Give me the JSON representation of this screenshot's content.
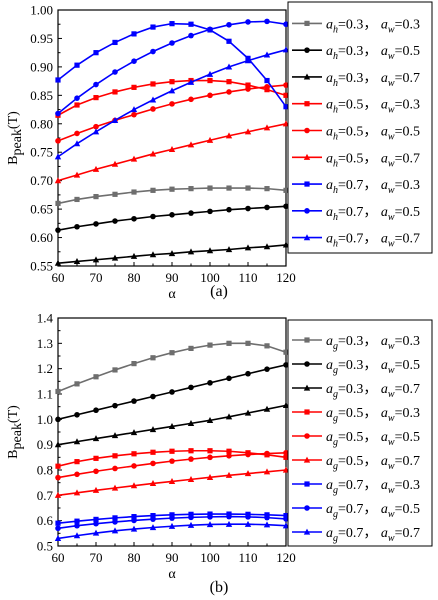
{
  "chart_data": [
    {
      "type": "line",
      "caption": "(a)",
      "xlabel": "α",
      "ylabel": "B",
      "ylabel_sub": "peak",
      "ylabel_suffix": "(T)",
      "xlim": [
        60,
        120
      ],
      "ylim": [
        0.55,
        1.0
      ],
      "xticks": [
        "60",
        "70",
        "80",
        "90",
        "100",
        "110",
        "120"
      ],
      "yticks": [
        "0.55",
        "0.60",
        "0.65",
        "0.70",
        "0.75",
        "0.80",
        "0.85",
        "0.90",
        "0.95",
        "1.00"
      ],
      "x": [
        60,
        65,
        70,
        75,
        80,
        85,
        90,
        95,
        100,
        105,
        110,
        115,
        120
      ],
      "series": [
        {
          "name": "a_h=0.3， a_w=0.3",
          "sym1": "h",
          "v1": "=0.3",
          "sep": "，",
          "sym2": "w",
          "v2": "=0.3",
          "color": "#6e6e6e",
          "marker": "square",
          "values": [
            0.66,
            0.667,
            0.672,
            0.676,
            0.68,
            0.683,
            0.685,
            0.686,
            0.687,
            0.687,
            0.687,
            0.686,
            0.683
          ]
        },
        {
          "name": "a_h=0.3， a_w=0.5",
          "sym1": "h",
          "v1": "=0.3",
          "sep": "，",
          "sym2": "w",
          "v2": "=0.5",
          "color": "#000000",
          "marker": "circle",
          "values": [
            0.613,
            0.619,
            0.624,
            0.629,
            0.633,
            0.637,
            0.64,
            0.643,
            0.646,
            0.649,
            0.651,
            0.653,
            0.655
          ]
        },
        {
          "name": "a_h=0.3， a_w=0.7",
          "sym1": "h",
          "v1": "=0.3",
          "sep": "，",
          "sym2": "w",
          "v2": "=0.7",
          "color": "#000000",
          "marker": "triangle",
          "values": [
            0.555,
            0.558,
            0.561,
            0.564,
            0.567,
            0.57,
            0.572,
            0.575,
            0.577,
            0.579,
            0.582,
            0.584,
            0.587
          ]
        },
        {
          "name": "a_h=0.5， a_w=0.3",
          "sym1": "h",
          "v1": "=0.5",
          "sep": "，",
          "sym2": "w",
          "v2": "=0.3",
          "color": "#ff0000",
          "marker": "square",
          "values": [
            0.815,
            0.833,
            0.846,
            0.856,
            0.864,
            0.87,
            0.874,
            0.876,
            0.876,
            0.874,
            0.868,
            0.86,
            0.85
          ]
        },
        {
          "name": "a_h=0.5， a_w=0.5",
          "sym1": "h",
          "v1": "=0.5",
          "sep": "，",
          "sym2": "w",
          "v2": "=0.5",
          "color": "#ff0000",
          "marker": "circle",
          "values": [
            0.77,
            0.783,
            0.795,
            0.806,
            0.816,
            0.826,
            0.835,
            0.843,
            0.85,
            0.856,
            0.861,
            0.865,
            0.868
          ]
        },
        {
          "name": "a_h=0.5， a_w=0.7",
          "sym1": "h",
          "v1": "=0.5",
          "sep": "，",
          "sym2": "w",
          "v2": "=0.7",
          "color": "#ff0000",
          "marker": "triangle",
          "values": [
            0.7,
            0.71,
            0.72,
            0.729,
            0.738,
            0.747,
            0.755,
            0.763,
            0.771,
            0.779,
            0.786,
            0.793,
            0.8
          ]
        },
        {
          "name": "a_h=0.7， a_w=0.3",
          "sym1": "h",
          "v1": "=0.7",
          "sep": "，",
          "sym2": "w",
          "v2": "=0.3",
          "color": "#0000ff",
          "marker": "square",
          "values": [
            0.877,
            0.903,
            0.925,
            0.943,
            0.958,
            0.97,
            0.976,
            0.975,
            0.965,
            0.945,
            0.915,
            0.876,
            0.83
          ]
        },
        {
          "name": "a_h=0.7， a_w=0.5",
          "sym1": "h",
          "v1": "=0.7",
          "sep": "，",
          "sym2": "w",
          "v2": "=0.5",
          "color": "#0000ff",
          "marker": "circle",
          "values": [
            0.818,
            0.845,
            0.869,
            0.891,
            0.91,
            0.927,
            0.942,
            0.955,
            0.966,
            0.974,
            0.979,
            0.98,
            0.975
          ]
        },
        {
          "name": "a_h=0.7， a_w=0.7",
          "sym1": "h",
          "v1": "=0.7",
          "sep": "，",
          "sym2": "w",
          "v2": "=0.7",
          "color": "#0000ff",
          "marker": "triangle",
          "values": [
            0.742,
            0.765,
            0.786,
            0.806,
            0.825,
            0.842,
            0.858,
            0.873,
            0.887,
            0.9,
            0.911,
            0.921,
            0.93
          ]
        }
      ]
    },
    {
      "type": "line",
      "caption": "(b)",
      "xlabel": "α",
      "ylabel": "B",
      "ylabel_sub": "peak",
      "ylabel_suffix": "(T)",
      "xlim": [
        60,
        120
      ],
      "ylim": [
        0.5,
        1.4
      ],
      "xticks": [
        "60",
        "70",
        "80",
        "90",
        "100",
        "110",
        "120"
      ],
      "yticks": [
        "0.5",
        "0.6",
        "0.7",
        "0.8",
        "0.9",
        "1.0",
        "1.1",
        "1.2",
        "1.3",
        "1.4"
      ],
      "x": [
        60,
        65,
        70,
        75,
        80,
        85,
        90,
        95,
        100,
        105,
        110,
        115,
        120
      ],
      "series": [
        {
          "name": "a_g=0.3， a_w=0.3",
          "sym1": "g",
          "v1": "=0.3",
          "sep": "，",
          "sym2": "w",
          "v2": "=0.3",
          "color": "#6e6e6e",
          "marker": "square",
          "values": [
            1.11,
            1.14,
            1.168,
            1.195,
            1.22,
            1.243,
            1.263,
            1.28,
            1.293,
            1.3,
            1.3,
            1.29,
            1.265
          ]
        },
        {
          "name": "a_g=0.3， a_w=0.5",
          "sym1": "g",
          "v1": "=0.3",
          "sep": "，",
          "sym2": "w",
          "v2": "=0.5",
          "color": "#000000",
          "marker": "circle",
          "values": [
            1.0,
            1.018,
            1.036,
            1.054,
            1.072,
            1.09,
            1.108,
            1.126,
            1.144,
            1.162,
            1.18,
            1.198,
            1.215
          ]
        },
        {
          "name": "a_g=0.3， a_w=0.7",
          "sym1": "g",
          "v1": "=0.3",
          "sep": "，",
          "sym2": "w",
          "v2": "=0.7",
          "color": "#000000",
          "marker": "triangle",
          "values": [
            0.9,
            0.912,
            0.924,
            0.936,
            0.948,
            0.96,
            0.972,
            0.984,
            0.996,
            1.01,
            1.025,
            1.04,
            1.055
          ]
        },
        {
          "name": "a_g=0.5， a_w=0.3",
          "sym1": "g",
          "v1": "=0.5",
          "sep": "，",
          "sym2": "w",
          "v2": "=0.3",
          "color": "#ff0000",
          "marker": "square",
          "values": [
            0.815,
            0.833,
            0.846,
            0.856,
            0.864,
            0.87,
            0.874,
            0.876,
            0.876,
            0.874,
            0.868,
            0.86,
            0.85
          ]
        },
        {
          "name": "a_g=0.5， a_w=0.5",
          "sym1": "g",
          "v1": "=0.5",
          "sep": "，",
          "sym2": "w",
          "v2": "=0.5",
          "color": "#ff0000",
          "marker": "circle",
          "values": [
            0.77,
            0.783,
            0.795,
            0.806,
            0.816,
            0.826,
            0.835,
            0.843,
            0.85,
            0.856,
            0.861,
            0.865,
            0.868
          ]
        },
        {
          "name": "a_g=0.5， a_w=0.7",
          "sym1": "g",
          "v1": "=0.5",
          "sep": "，",
          "sym2": "w",
          "v2": "=0.7",
          "color": "#ff0000",
          "marker": "triangle",
          "values": [
            0.7,
            0.71,
            0.72,
            0.729,
            0.738,
            0.747,
            0.755,
            0.763,
            0.771,
            0.779,
            0.786,
            0.793,
            0.8
          ]
        },
        {
          "name": "a_g=0.7， a_w=0.3",
          "sym1": "g",
          "v1": "=0.7",
          "sep": "，",
          "sym2": "w",
          "v2": "=0.3",
          "color": "#0000ff",
          "marker": "square",
          "values": [
            0.59,
            0.598,
            0.605,
            0.611,
            0.616,
            0.62,
            0.623,
            0.625,
            0.626,
            0.626,
            0.625,
            0.623,
            0.62
          ]
        },
        {
          "name": "a_g=0.7， a_w=0.5",
          "sym1": "g",
          "v1": "=0.7",
          "sep": "，",
          "sym2": "w",
          "v2": "=0.5",
          "color": "#0000ff",
          "marker": "circle",
          "values": [
            0.57,
            0.58,
            0.588,
            0.595,
            0.601,
            0.606,
            0.61,
            0.613,
            0.615,
            0.616,
            0.615,
            0.612,
            0.607
          ]
        },
        {
          "name": "a_g=0.7， a_w=0.7",
          "sym1": "g",
          "v1": "=0.7",
          "sep": "，",
          "sym2": "w",
          "v2": "=0.7",
          "color": "#0000ff",
          "marker": "triangle",
          "values": [
            0.53,
            0.541,
            0.551,
            0.56,
            0.567,
            0.573,
            0.578,
            0.582,
            0.585,
            0.586,
            0.586,
            0.584,
            0.58
          ]
        }
      ]
    }
  ]
}
